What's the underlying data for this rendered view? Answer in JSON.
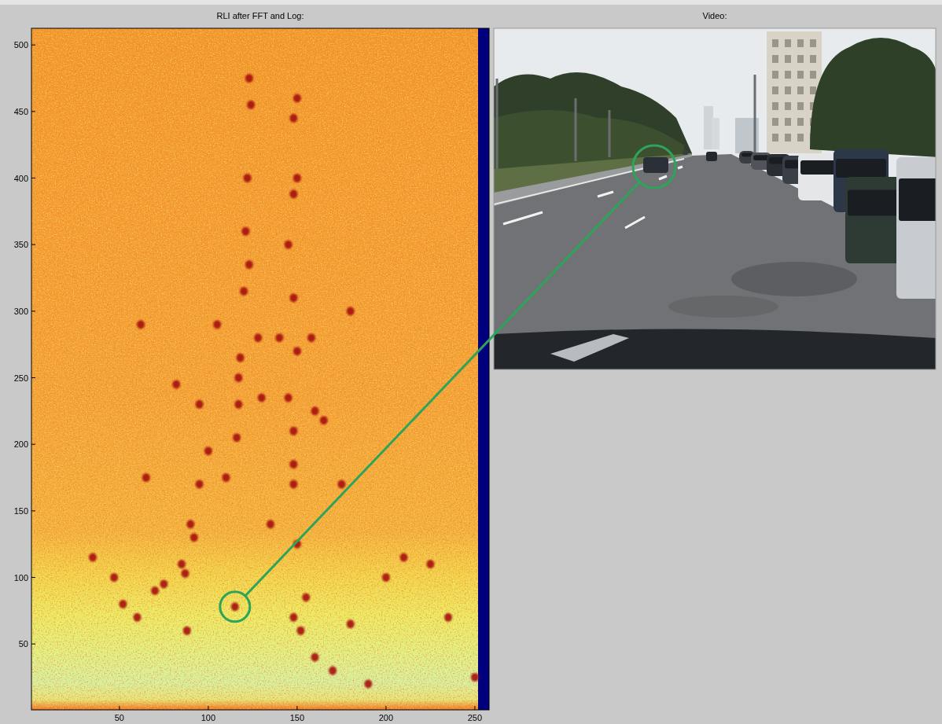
{
  "chart_data": {
    "type": "scatter",
    "title": "RLI after FFT and Log:",
    "x": [
      115,
      60,
      52,
      70,
      47,
      35,
      87,
      75,
      85,
      92,
      90,
      95,
      65,
      100,
      110,
      95,
      82,
      62,
      123,
      122,
      121,
      123,
      120,
      118,
      117,
      117,
      116,
      124,
      150,
      148,
      150,
      148,
      145,
      148,
      140,
      128,
      158,
      150,
      145,
      148,
      148,
      148,
      150,
      155,
      148,
      152,
      135,
      130,
      160,
      165,
      200,
      225,
      235,
      180,
      175,
      210,
      160,
      170,
      190,
      250,
      105,
      180,
      88
    ],
    "values": [
      78,
      70,
      80,
      90,
      100,
      115,
      103,
      95,
      110,
      130,
      140,
      170,
      175,
      195,
      175,
      230,
      245,
      290,
      475,
      400,
      360,
      335,
      315,
      265,
      250,
      230,
      205,
      455,
      460,
      445,
      400,
      388,
      350,
      310,
      280,
      280,
      280,
      270,
      235,
      210,
      185,
      170,
      125,
      85,
      70,
      60,
      140,
      235,
      225,
      218,
      100,
      110,
      70,
      65,
      170,
      115,
      40,
      30,
      20,
      25,
      290,
      300,
      60
    ],
    "color": "#a50f0f",
    "marker": "circle",
    "xlim": [
      0.5,
      258
    ],
    "ylim": [
      0.5,
      512.5
    ],
    "xticks": [
      50,
      100,
      150,
      200,
      250
    ],
    "yticks": [
      50,
      100,
      150,
      200,
      250,
      300,
      350,
      400,
      450,
      500
    ],
    "highlight": {
      "x": 115,
      "y": 78
    }
  },
  "video": {
    "title": "Video:"
  }
}
